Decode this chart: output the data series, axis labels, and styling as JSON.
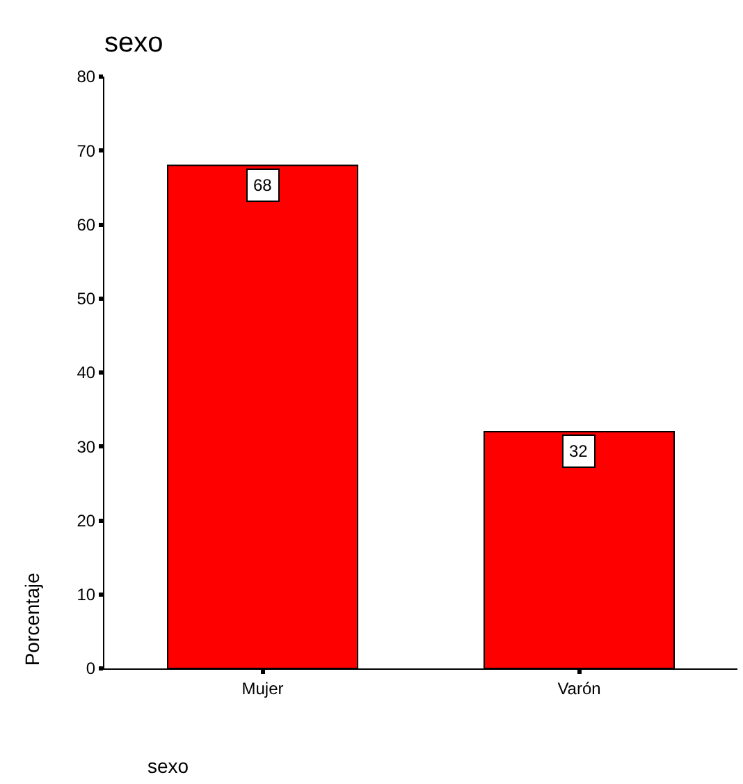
{
  "chart_data": {
    "type": "bar",
    "title": "sexo",
    "xlabel": "sexo",
    "ylabel": "Porcentaje",
    "categories": [
      "Mujer",
      "Varón"
    ],
    "values": [
      68,
      32
    ],
    "color": "#ff0000",
    "ylim": [
      0,
      80
    ],
    "yticks": [
      0,
      10,
      20,
      30,
      40,
      50,
      60,
      70,
      80
    ],
    "data_labels": true,
    "legend": false
  }
}
